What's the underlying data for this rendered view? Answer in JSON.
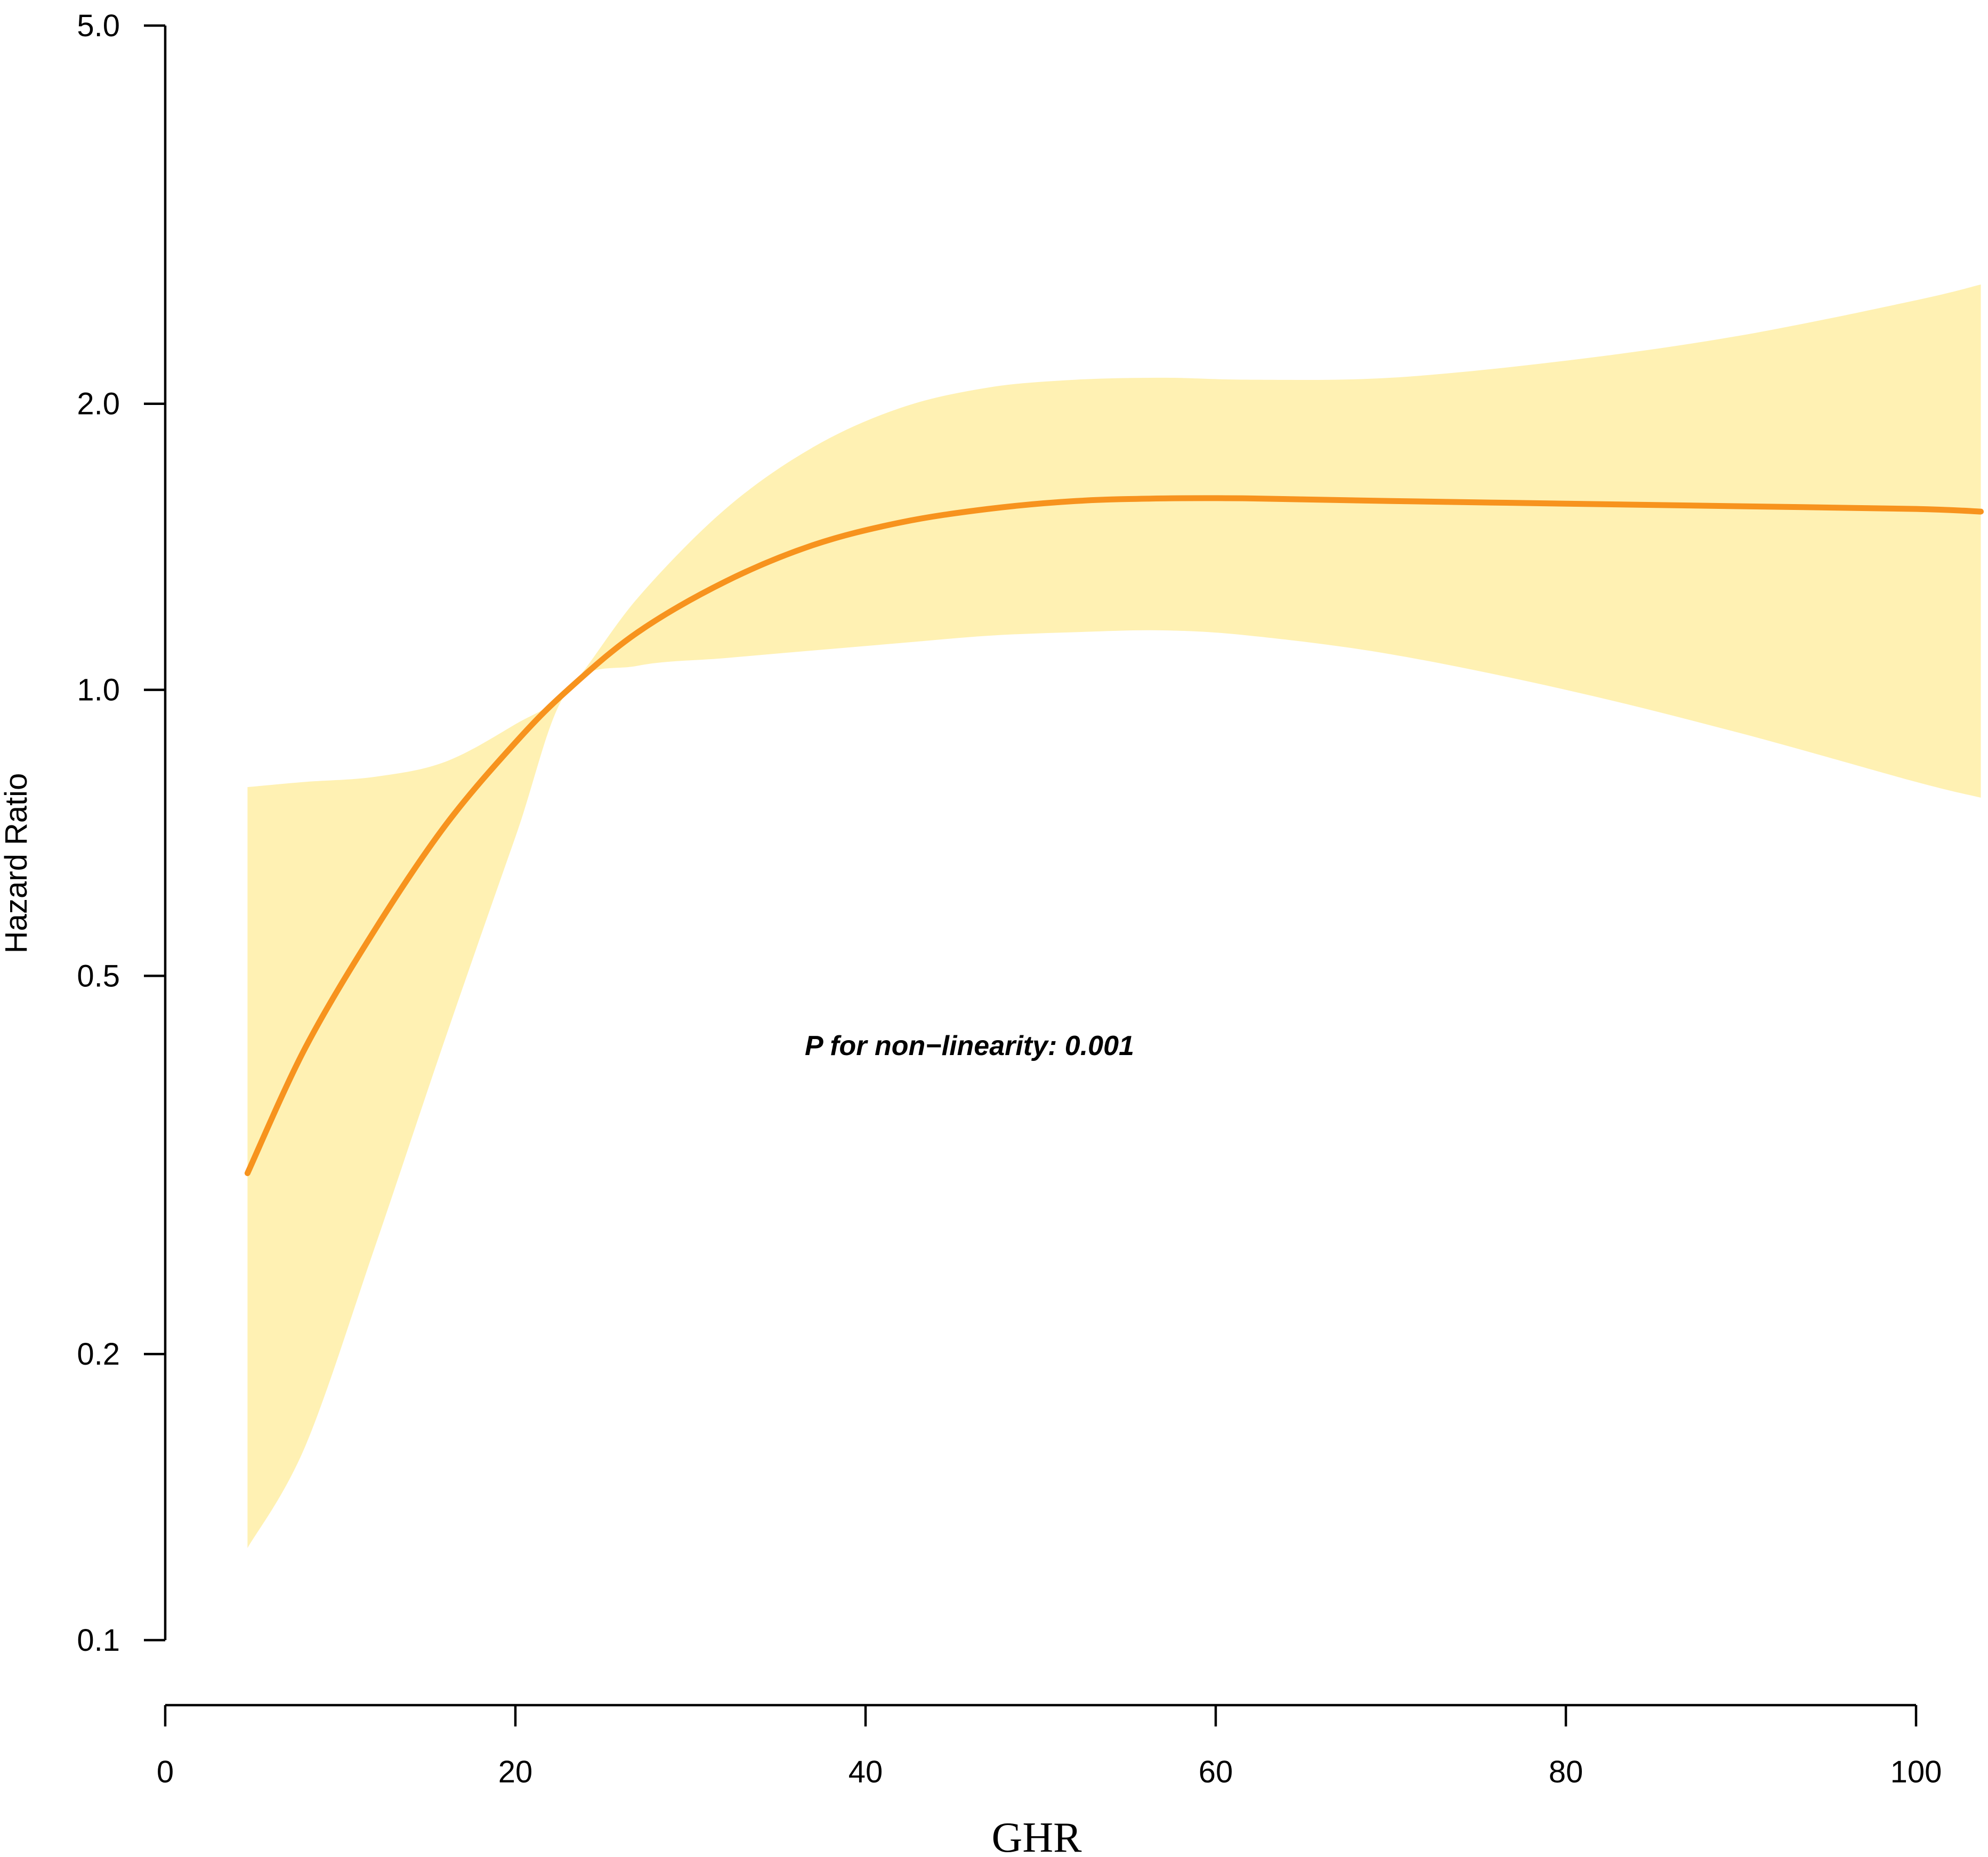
{
  "chart_data": {
    "type": "line",
    "xlabel": "GHR",
    "ylabel": "Hazard Ratio",
    "xlim": [
      0,
      100
    ],
    "ylim": [
      0.1,
      5.0
    ],
    "y_scale": "log",
    "grid": false,
    "x_ticks": [
      0,
      20,
      40,
      60,
      80,
      100
    ],
    "y_ticks": [
      0.1,
      0.2,
      0.5,
      1.0,
      2.0,
      5.0
    ],
    "x_tick_labels": [
      "0",
      "20",
      "40",
      "60",
      "80",
      "100"
    ],
    "y_tick_labels": [
      "0.1",
      "0.2",
      "0.5",
      "1.0",
      "2.0",
      "5.0"
    ],
    "annotation": "P for non−linearity: 0.001",
    "series": [
      {
        "x": [
          4.7,
          8.0,
          12.0,
          16.0,
          20.0,
          23.0,
          27.0,
          32.0,
          37.0,
          42.0,
          47.0,
          52.0,
          57.0,
          62.0,
          70.0,
          80.0,
          90.0,
          100.0,
          103.7
        ],
        "y": [
          0.31,
          0.42,
          0.56,
          0.72,
          0.88,
          1.0,
          1.15,
          1.3,
          1.42,
          1.5,
          1.55,
          1.58,
          1.59,
          1.59,
          1.58,
          1.57,
          1.56,
          1.55,
          1.54
        ],
        "lower": [
          0.125,
          0.16,
          0.26,
          0.43,
          0.7,
          1.0,
          1.06,
          1.08,
          1.1,
          1.12,
          1.14,
          1.15,
          1.155,
          1.14,
          1.09,
          1.0,
          0.9,
          0.8,
          0.77
        ],
        "upper": [
          0.79,
          0.8,
          0.81,
          0.84,
          0.92,
          1.0,
          1.25,
          1.55,
          1.8,
          1.98,
          2.08,
          2.12,
          2.13,
          2.12,
          2.13,
          2.22,
          2.36,
          2.57,
          2.67
        ],
        "color": "#f7931e",
        "ci_color": "#fff1b3"
      }
    ]
  }
}
